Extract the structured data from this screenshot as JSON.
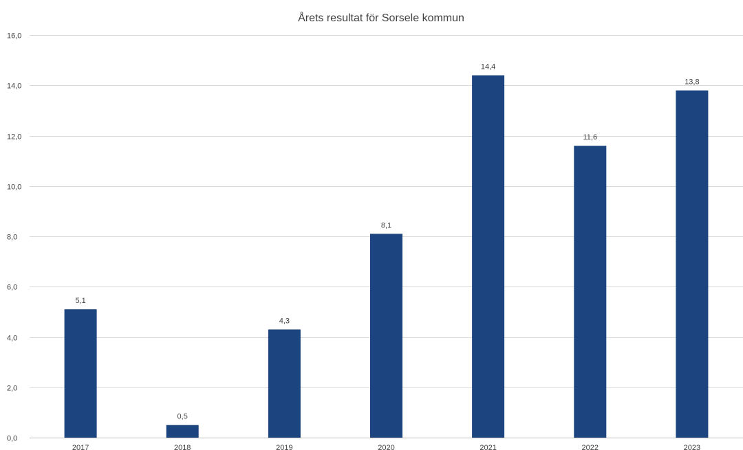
{
  "chart_data": {
    "type": "bar",
    "title": "Årets resultat för Sorsele kommun",
    "xlabel": "",
    "ylabel": "",
    "categories": [
      "2017",
      "2018",
      "2019",
      "2020",
      "2021",
      "2022",
      "2023"
    ],
    "values": [
      5.1,
      0.5,
      4.3,
      8.1,
      14.4,
      11.6,
      13.8
    ],
    "data_labels": [
      "5,1",
      "0,5",
      "4,3",
      "8,1",
      "14,4",
      "11,6",
      "13,8"
    ],
    "ylim": [
      0,
      16
    ],
    "yticks": [
      0,
      2,
      4,
      6,
      8,
      10,
      12,
      14,
      16
    ],
    "ytick_labels": [
      "0,0",
      "2,0",
      "4,0",
      "6,0",
      "8,0",
      "10,0",
      "12,0",
      "14,0",
      "16,0"
    ],
    "grid": true,
    "legend": "none",
    "bar_color": "#1c4580"
  }
}
